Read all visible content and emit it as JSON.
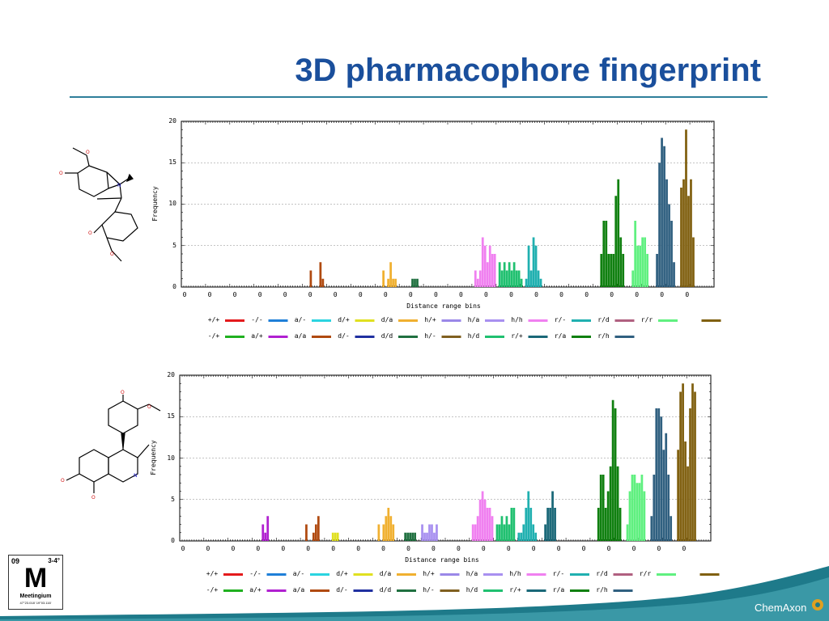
{
  "slide": {
    "title": "3D pharmacophore fingerprint",
    "brand": "ChemAxon"
  },
  "badge": {
    "number": "09",
    "level": "3-4°",
    "symbol": "M",
    "name": "Meetingium",
    "code": "47°23.018' 19°03.116'"
  },
  "molecules": [
    {
      "atoms": [
        "O",
        "O",
        "N",
        "O",
        "O"
      ]
    },
    {
      "atoms": [
        "O",
        "O",
        "O",
        "O",
        "N"
      ]
    }
  ],
  "legend": [
    {
      "label": "+/+",
      "color": "#e41a1c"
    },
    {
      "label": "-/-",
      "color": "#1f7fd8"
    },
    {
      "label": "a/-",
      "color": "#2bd4e0"
    },
    {
      "label": "d/+",
      "color": "#e0e020"
    },
    {
      "label": "d/a",
      "color": "#f0b030"
    },
    {
      "label": "h/+",
      "color": "#9a88e8"
    },
    {
      "label": "h/a",
      "color": "#a890f0"
    },
    {
      "label": "h/h",
      "color": "#f080f0"
    },
    {
      "label": "r/-",
      "color": "#20b0b0"
    },
    {
      "label": "r/d",
      "color": "#b06080"
    },
    {
      "label": "r/r",
      "color": "#60f080"
    },
    {
      "label": "",
      "color": "#806010"
    },
    {
      "label": "-/+",
      "color": "#20b020"
    },
    {
      "label": "a/+",
      "color": "#b020d0"
    },
    {
      "label": "a/a",
      "color": "#b04a10"
    },
    {
      "label": "d/-",
      "color": "#2030a0"
    },
    {
      "label": "d/d",
      "color": "#207040"
    },
    {
      "label": "h/-",
      "color": "#806020"
    },
    {
      "label": "h/d",
      "color": "#20c070"
    },
    {
      "label": "r/+",
      "color": "#1a6878"
    },
    {
      "label": "r/a",
      "color": "#108010"
    },
    {
      "label": "r/h",
      "color": "#306080"
    }
  ],
  "chart_data": [
    {
      "type": "bar",
      "xlabel": "Distance range bins",
      "ylabel": "Frequency",
      "ylim": [
        0,
        20
      ],
      "yticks": [
        "0",
        "5",
        "10",
        "15",
        "20"
      ],
      "xticks": [
        "0",
        "0",
        "0",
        "0",
        "0",
        "0",
        "0",
        "0",
        "0",
        "0",
        "0",
        "0",
        "0",
        "0",
        "0",
        "0",
        "0",
        "0",
        "0",
        "0",
        "0"
      ],
      "grid": true,
      "groups": [
        {
          "color": "#b04a10",
          "bins": [
            53,
            57,
            58
          ],
          "values": [
            2,
            3,
            1
          ]
        },
        {
          "color": "#f0b030",
          "bins": [
            83,
            85,
            86,
            87,
            88
          ],
          "values": [
            2,
            1,
            3,
            1,
            1
          ]
        },
        {
          "color": "#207040",
          "bins": [
            95,
            96,
            97
          ],
          "values": [
            1,
            1,
            1
          ]
        },
        {
          "color": "#f080f0",
          "bins": [
            121,
            122,
            123,
            124,
            125,
            126,
            127,
            128,
            129
          ],
          "values": [
            2,
            1,
            2,
            6,
            5,
            3,
            5,
            4,
            4
          ]
        },
        {
          "color": "#20c070",
          "bins": [
            131,
            132,
            133,
            134,
            135,
            136,
            137,
            138,
            139,
            140
          ],
          "values": [
            3,
            2,
            3,
            2,
            3,
            2,
            3,
            2,
            2,
            1
          ]
        },
        {
          "color": "#20b0b0",
          "bins": [
            142,
            143,
            144,
            145,
            146,
            147,
            148
          ],
          "values": [
            1,
            5,
            2,
            6,
            5,
            2,
            1
          ]
        },
        {
          "color": "#108010",
          "bins": [
            173,
            174,
            175,
            176,
            177,
            178,
            179,
            180,
            181,
            182
          ],
          "values": [
            4,
            8,
            8,
            4,
            4,
            4,
            11,
            13,
            6,
            4
          ]
        },
        {
          "color": "#60f080",
          "bins": [
            186,
            187,
            188,
            189,
            190,
            191,
            192
          ],
          "values": [
            2,
            8,
            5,
            5,
            6,
            6,
            4
          ]
        },
        {
          "color": "#306080",
          "bins": [
            196,
            197,
            198,
            199,
            200,
            201,
            202,
            203
          ],
          "values": [
            4,
            15,
            18,
            17,
            13,
            10,
            8,
            3
          ]
        },
        {
          "color": "#806010",
          "bins": [
            206,
            207,
            208,
            209,
            210,
            211
          ],
          "values": [
            12,
            13,
            19,
            11,
            13,
            6
          ]
        }
      ]
    },
    {
      "type": "bar",
      "xlabel": "Distance range bins",
      "ylabel": "Frequency",
      "ylim": [
        0,
        20
      ],
      "yticks": [
        "0",
        "5",
        "10",
        "15",
        "20"
      ],
      "xticks": [
        "0",
        "0",
        "0",
        "0",
        "0",
        "0",
        "0",
        "0",
        "0",
        "0",
        "0",
        "0",
        "0",
        "0",
        "0",
        "0",
        "0",
        "0",
        "0",
        "0",
        "0"
      ],
      "grid": true,
      "groups": [
        {
          "color": "#b020d0",
          "bins": [
            34,
            35,
            36
          ],
          "values": [
            2,
            1,
            3
          ]
        },
        {
          "color": "#b04a10",
          "bins": [
            52,
            55,
            56,
            57
          ],
          "values": [
            2,
            1,
            2,
            3
          ]
        },
        {
          "color": "#e0e020",
          "bins": [
            63,
            64,
            65
          ],
          "values": [
            1,
            1,
            1
          ]
        },
        {
          "color": "#f0b030",
          "bins": [
            82,
            84,
            85,
            86,
            87,
            88
          ],
          "values": [
            2,
            2,
            3,
            4,
            3,
            2
          ]
        },
        {
          "color": "#207040",
          "bins": [
            93,
            94,
            95,
            96,
            97
          ],
          "values": [
            1,
            1,
            1,
            1,
            1
          ]
        },
        {
          "color": "#a890f0",
          "bins": [
            100,
            101,
            102,
            103,
            104,
            105,
            106
          ],
          "values": [
            2,
            1,
            1,
            2,
            2,
            1,
            2
          ]
        },
        {
          "color": "#f080f0",
          "bins": [
            121,
            122,
            123,
            124,
            125,
            126,
            127,
            128,
            129
          ],
          "values": [
            2,
            2,
            3,
            5,
            6,
            5,
            4,
            4,
            3
          ]
        },
        {
          "color": "#20c070",
          "bins": [
            131,
            132,
            133,
            134,
            135,
            136,
            137,
            138
          ],
          "values": [
            2,
            2,
            3,
            2,
            3,
            2,
            4,
            4
          ]
        },
        {
          "color": "#20b0b0",
          "bins": [
            140,
            141,
            142,
            143,
            144,
            145,
            146,
            147
          ],
          "values": [
            1,
            1,
            2,
            4,
            6,
            4,
            2,
            1
          ]
        },
        {
          "color": "#1a6878",
          "bins": [
            151,
            152,
            153,
            154,
            155
          ],
          "values": [
            2,
            4,
            4,
            6,
            4
          ]
        },
        {
          "color": "#108010",
          "bins": [
            173,
            174,
            175,
            176,
            177,
            178,
            179,
            180,
            181,
            182
          ],
          "values": [
            4,
            8,
            8,
            4,
            6,
            9,
            17,
            16,
            9,
            4
          ]
        },
        {
          "color": "#60f080",
          "bins": [
            185,
            186,
            187,
            188,
            189,
            190,
            191,
            192
          ],
          "values": [
            2,
            6,
            8,
            8,
            7,
            7,
            8,
            6
          ]
        },
        {
          "color": "#306080",
          "bins": [
            195,
            196,
            197,
            198,
            199,
            200,
            201,
            202,
            203
          ],
          "values": [
            3,
            8,
            16,
            16,
            15,
            11,
            13,
            8,
            3
          ]
        },
        {
          "color": "#806010",
          "bins": [
            206,
            207,
            208,
            209,
            210,
            211,
            212,
            213
          ],
          "values": [
            11,
            18,
            19,
            12,
            9,
            16,
            19,
            18
          ]
        }
      ]
    }
  ]
}
